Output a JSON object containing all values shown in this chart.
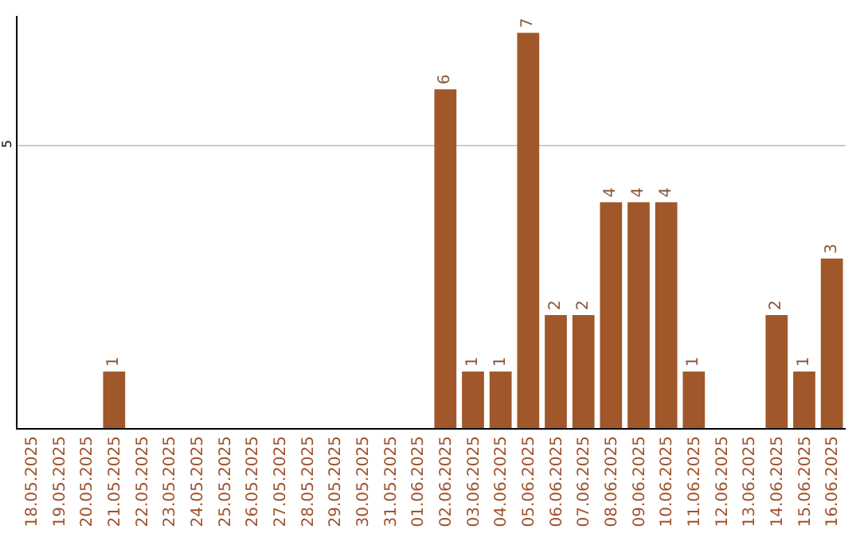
{
  "chart_data": {
    "type": "bar",
    "categories": [
      "18.05.2025",
      "19.05.2025",
      "20.05.2025",
      "21.05.2025",
      "22.05.2025",
      "23.05.2025",
      "24.05.2025",
      "25.05.2025",
      "26.05.2025",
      "27.05.2025",
      "28.05.2025",
      "29.05.2025",
      "30.05.2025",
      "31.05.2025",
      "01.06.2025",
      "02.06.2025",
      "03.06.2025",
      "04.06.2025",
      "05.06.2025",
      "06.06.2025",
      "07.06.2025",
      "08.06.2025",
      "09.06.2025",
      "10.06.2025",
      "11.06.2025",
      "12.06.2025",
      "13.06.2025",
      "14.06.2025",
      "15.06.2025",
      "16.06.2025"
    ],
    "values": [
      0,
      0,
      0,
      1,
      0,
      0,
      0,
      0,
      0,
      0,
      0,
      0,
      0,
      0,
      0,
      6,
      1,
      1,
      7,
      2,
      2,
      4,
      4,
      4,
      1,
      0,
      0,
      2,
      1,
      3
    ],
    "value_labels": [
      null,
      null,
      null,
      "1",
      null,
      null,
      null,
      null,
      null,
      null,
      null,
      null,
      null,
      null,
      null,
      "6",
      "1",
      "1",
      "7",
      "2",
      "2",
      "4",
      "4",
      "4",
      "1",
      null,
      null,
      "2",
      "1",
      "3"
    ],
    "color": "#a0572a",
    "ylim": [
      0,
      7.3
    ],
    "yticks": [
      5
    ],
    "grid": "y"
  }
}
